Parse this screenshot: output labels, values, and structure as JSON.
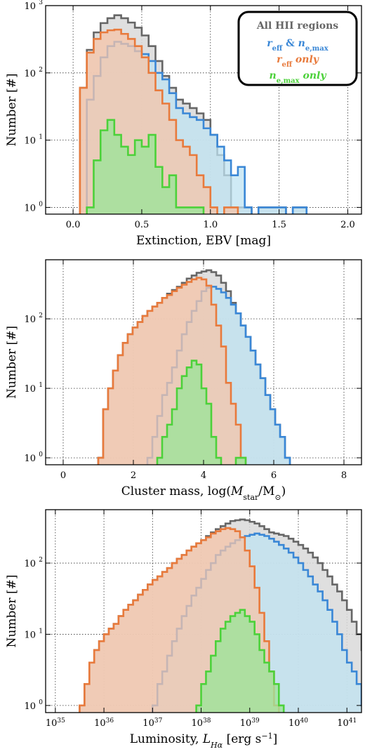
{
  "colors": {
    "all": "#666666",
    "reff_ne": "#3a87d6",
    "reff_only": "#e87a3c",
    "ne_only": "#4cd13a",
    "fill_all": "#d9d9d9",
    "fill_reff_ne": "#bfe3f2",
    "fill_reff_only": "#f6c4a8",
    "fill_ne_only": "#9ee39a"
  },
  "legend": {
    "all": "All HII regions",
    "reff_ne_a": "r",
    "reff_ne_sub1": "eff",
    "reff_ne_amp": " & ",
    "reff_ne_b": "n",
    "reff_ne_sub2": "e,max",
    "reff_only_a": "r",
    "reff_only_sub": "eff",
    "reff_only_b": " only",
    "ne_only_a": "n",
    "ne_only_sub": "e,max",
    "ne_only_b": " only"
  },
  "chart_data": [
    {
      "type": "histogram",
      "panel": "extinction",
      "xlabel": "Extinction, EBV [mag]",
      "ylabel": "Number [#]",
      "xlim": [
        -0.2,
        2.1
      ],
      "ylim_log10": [
        -0.1,
        3.0
      ],
      "yscale": "log",
      "xticks": [
        0.0,
        0.5,
        1.0,
        1.5,
        2.0
      ],
      "xtick_labels": [
        "0.0",
        "0.5",
        "1.0",
        "1.5",
        "2.0"
      ],
      "yticks_exp": [
        0,
        1,
        2,
        3
      ],
      "ytick_base": "10",
      "grid": true,
      "bin_start": 0.0,
      "bin_width": 0.05,
      "series": [
        {
          "key": "all",
          "values": [
            0,
            60,
            220,
            400,
            550,
            650,
            720,
            650,
            560,
            470,
            360,
            250,
            150,
            90,
            60,
            40,
            35,
            30,
            25,
            20,
            12,
            6,
            3,
            1,
            1,
            1,
            0,
            1,
            1,
            1,
            1,
            0,
            1,
            1,
            0
          ]
        },
        {
          "key": "reff_only",
          "values": [
            0,
            60,
            200,
            320,
            400,
            430,
            440,
            380,
            320,
            250,
            170,
            100,
            55,
            35,
            20,
            10,
            8,
            6,
            3,
            2,
            1,
            0,
            1,
            1,
            0,
            0,
            0,
            0,
            0,
            0,
            0,
            0,
            0,
            0,
            0
          ]
        },
        {
          "key": "reff_ne",
          "values": [
            0,
            0,
            40,
            90,
            170,
            250,
            290,
            270,
            250,
            210,
            190,
            150,
            100,
            80,
            50,
            30,
            25,
            22,
            20,
            15,
            12,
            8,
            5,
            3,
            4,
            1,
            0,
            1,
            1,
            1,
            1,
            0,
            1,
            1,
            0
          ]
        },
        {
          "key": "ne_only",
          "values": [
            0,
            0,
            1,
            5,
            14,
            20,
            12,
            8,
            6,
            10,
            8,
            12,
            4,
            2,
            3,
            1,
            1,
            1,
            1,
            0,
            0,
            0,
            0,
            0,
            0,
            0,
            0,
            0,
            0,
            0,
            0,
            0,
            0,
            0,
            0
          ]
        }
      ]
    },
    {
      "type": "histogram",
      "panel": "cluster-mass",
      "xlabel_a": "Cluster mass, log(",
      "xlabel_m": "M",
      "xlabel_sub": "star",
      "xlabel_b": "/M",
      "xlabel_sun": "⊙",
      "xlabel_c": ")",
      "ylabel": "Number [#]",
      "xlim": [
        -0.5,
        8.5
      ],
      "ylim_log10": [
        -0.1,
        2.85
      ],
      "yscale": "log",
      "xticks": [
        0,
        2,
        4,
        6,
        8
      ],
      "xtick_labels": [
        "0",
        "2",
        "4",
        "6",
        "8"
      ],
      "yticks_exp": [
        0,
        1,
        2
      ],
      "ytick_base": "10",
      "grid": true,
      "bin_start": 1.0,
      "bin_width": 0.14,
      "series": [
        {
          "key": "all",
          "values": [
            1,
            5,
            10,
            18,
            30,
            45,
            60,
            75,
            90,
            110,
            130,
            150,
            170,
            200,
            230,
            260,
            290,
            330,
            380,
            420,
            460,
            480,
            500,
            470,
            420,
            330,
            250,
            170,
            120,
            80,
            55,
            35,
            22,
            14,
            8,
            5,
            3,
            2,
            1,
            0
          ]
        },
        {
          "key": "reff_only",
          "values": [
            1,
            5,
            10,
            18,
            30,
            45,
            60,
            75,
            90,
            110,
            130,
            150,
            170,
            200,
            220,
            250,
            280,
            310,
            340,
            370,
            390,
            370,
            300,
            160,
            80,
            40,
            12,
            6,
            3,
            1,
            0,
            0,
            0,
            0,
            0,
            0,
            0,
            0,
            0,
            0
          ]
        },
        {
          "key": "reff_ne",
          "values": [
            0,
            0,
            0,
            0,
            0,
            0,
            0,
            0,
            0,
            0,
            1,
            2,
            4,
            8,
            12,
            20,
            35,
            60,
            90,
            130,
            180,
            250,
            280,
            290,
            270,
            240,
            200,
            160,
            120,
            80,
            55,
            35,
            22,
            14,
            8,
            5,
            3,
            2,
            1,
            0
          ]
        },
        {
          "key": "ne_only",
          "values": [
            0,
            0,
            0,
            0,
            0,
            0,
            0,
            0,
            0,
            0,
            0,
            0,
            1,
            2,
            3,
            5,
            10,
            15,
            20,
            25,
            22,
            10,
            6,
            2,
            1,
            0,
            0,
            0,
            1,
            1,
            0,
            0,
            0,
            0,
            0,
            0,
            0,
            0,
            0,
            0
          ]
        }
      ]
    },
    {
      "type": "histogram",
      "panel": "luminosity",
      "xlabel_a": "Luminosity, ",
      "xlabel_l": "L",
      "xlabel_sub": "Hα",
      "xlabel_b": " [erg s",
      "xlabel_sup": "−1",
      "xlabel_c": "]",
      "ylabel": "Number [#]",
      "xlim": [
        34.8,
        41.3
      ],
      "ylim_log10": [
        -0.1,
        2.75
      ],
      "yscale": "log",
      "xticks": [
        35,
        36,
        37,
        38,
        39,
        40,
        41
      ],
      "xtick_base": "10",
      "xtick_exps": [
        "35",
        "36",
        "37",
        "38",
        "39",
        "40",
        "41"
      ],
      "yticks_exp": [
        0,
        1,
        2
      ],
      "ytick_base": "10",
      "grid": true,
      "bin_start": 35.5,
      "bin_width": 0.1,
      "series": [
        {
          "key": "all",
          "values": [
            1,
            2,
            4,
            6,
            8,
            10,
            12,
            14,
            18,
            22,
            26,
            30,
            36,
            42,
            50,
            58,
            65,
            75,
            85,
            100,
            115,
            130,
            150,
            170,
            190,
            210,
            240,
            270,
            300,
            330,
            360,
            390,
            400,
            410,
            400,
            380,
            360,
            330,
            300,
            270,
            260,
            250,
            240,
            220,
            200,
            180,
            160,
            140,
            120,
            100,
            80,
            65,
            50,
            40,
            30,
            22,
            15,
            10,
            6,
            4,
            3,
            2,
            1,
            0
          ]
        },
        {
          "key": "reff_only",
          "values": [
            1,
            2,
            4,
            6,
            8,
            10,
            12,
            14,
            18,
            22,
            26,
            30,
            36,
            42,
            50,
            58,
            65,
            75,
            85,
            100,
            115,
            130,
            150,
            170,
            190,
            210,
            230,
            260,
            280,
            300,
            310,
            300,
            280,
            230,
            150,
            90,
            45,
            20,
            8,
            3,
            1,
            0,
            0,
            0,
            0,
            0,
            0,
            0,
            0,
            0,
            0,
            0,
            0,
            0,
            0,
            0,
            0,
            0,
            0,
            0,
            0,
            0,
            0,
            0
          ]
        },
        {
          "key": "reff_ne",
          "values": [
            0,
            0,
            0,
            0,
            0,
            0,
            0,
            0,
            0,
            0,
            0,
            0,
            0,
            0,
            0,
            1,
            2,
            3,
            5,
            8,
            12,
            18,
            25,
            35,
            45,
            60,
            80,
            100,
            130,
            150,
            170,
            190,
            210,
            230,
            240,
            250,
            260,
            250,
            240,
            220,
            200,
            180,
            160,
            140,
            120,
            100,
            80,
            65,
            50,
            40,
            30,
            22,
            15,
            10,
            6,
            4,
            3,
            2,
            1,
            0,
            0,
            0,
            0,
            0
          ]
        },
        {
          "key": "ne_only",
          "values": [
            0,
            0,
            0,
            0,
            0,
            0,
            0,
            0,
            0,
            0,
            0,
            0,
            0,
            0,
            0,
            0,
            0,
            0,
            0,
            0,
            0,
            0,
            0,
            0,
            1,
            2,
            3,
            5,
            8,
            12,
            15,
            18,
            20,
            22,
            18,
            15,
            10,
            6,
            4,
            3,
            2,
            1,
            0,
            0,
            0,
            0,
            0,
            0,
            0,
            0,
            0,
            0,
            0,
            0,
            0,
            0,
            0,
            0,
            0,
            0,
            0,
            0,
            0,
            0
          ]
        }
      ]
    }
  ]
}
